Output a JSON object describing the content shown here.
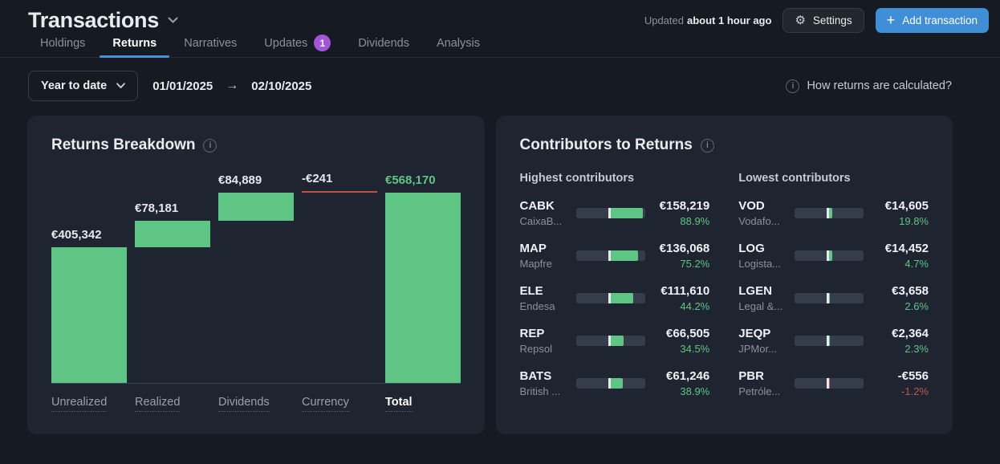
{
  "header": {
    "title": "Transactions",
    "updated_label": "Updated",
    "updated_value": "about 1 hour ago",
    "settings_label": "Settings",
    "add_transaction_label": "Add transaction"
  },
  "tabs": [
    {
      "label": "Holdings",
      "active": false,
      "badge": ""
    },
    {
      "label": "Returns",
      "active": true,
      "badge": ""
    },
    {
      "label": "Narratives",
      "active": false,
      "badge": ""
    },
    {
      "label": "Updates",
      "active": false,
      "badge": "1"
    },
    {
      "label": "Dividends",
      "active": false,
      "badge": ""
    },
    {
      "label": "Analysis",
      "active": false,
      "badge": ""
    }
  ],
  "filter": {
    "range_label": "Year to date",
    "start_date": "01/01/2025",
    "end_date": "02/10/2025",
    "help_text": "How returns are calculated?"
  },
  "returns_breakdown": {
    "title": "Returns Breakdown",
    "chart_data": {
      "type": "bar",
      "subtype": "waterfall",
      "title": "Returns Breakdown",
      "categories": [
        "Unrealized",
        "Realized",
        "Dividends",
        "Currency",
        "Total"
      ],
      "values": [
        405342,
        78181,
        84889,
        -241,
        568170
      ],
      "value_labels": [
        "€405,342",
        "€78,181",
        "€84,889",
        "-€241",
        "€568,170"
      ],
      "currency": "EUR",
      "grid": false,
      "legend": false,
      "positive_color": "#5fc585",
      "negative_color": "#c0504a"
    }
  },
  "contributors": {
    "title": "Contributors to Returns",
    "highest_label": "Highest contributors",
    "lowest_label": "Lowest contributors",
    "highest": [
      {
        "ticker": "CABK",
        "name": "CaixaB...",
        "amount": 158219,
        "amount_label": "€158,219",
        "percent_label": "88.9%",
        "negative": false
      },
      {
        "ticker": "MAP",
        "name": "Mapfre",
        "amount": 136068,
        "amount_label": "€136,068",
        "percent_label": "75.2%",
        "negative": false
      },
      {
        "ticker": "ELE",
        "name": "Endesa",
        "amount": 111610,
        "amount_label": "€111,610",
        "percent_label": "44.2%",
        "negative": false
      },
      {
        "ticker": "REP",
        "name": "Repsol",
        "amount": 66505,
        "amount_label": "€66,505",
        "percent_label": "34.5%",
        "negative": false
      },
      {
        "ticker": "BATS",
        "name": "British ...",
        "amount": 61246,
        "amount_label": "€61,246",
        "percent_label": "38.9%",
        "negative": false
      }
    ],
    "lowest": [
      {
        "ticker": "VOD",
        "name": "Vodafo...",
        "amount": 14605,
        "amount_label": "€14,605",
        "percent_label": "19.8%",
        "negative": false
      },
      {
        "ticker": "LOG",
        "name": "Logista...",
        "amount": 14452,
        "amount_label": "€14,452",
        "percent_label": "4.7%",
        "negative": false
      },
      {
        "ticker": "LGEN",
        "name": "Legal &...",
        "amount": 3658,
        "amount_label": "€3,658",
        "percent_label": "2.6%",
        "negative": false
      },
      {
        "ticker": "JEQP",
        "name": "JPMor...",
        "amount": 2364,
        "amount_label": "€2,364",
        "percent_label": "2.3%",
        "negative": false
      },
      {
        "ticker": "PBR",
        "name": "Petróle...",
        "amount": -556,
        "amount_label": "-€556",
        "percent_label": "-1.2%",
        "negative": true
      }
    ]
  },
  "colors": {
    "positive": "#5fc585",
    "negative": "#c0504a",
    "accent_blue": "#3f8ed6",
    "badge_purple": "#a155d9"
  }
}
